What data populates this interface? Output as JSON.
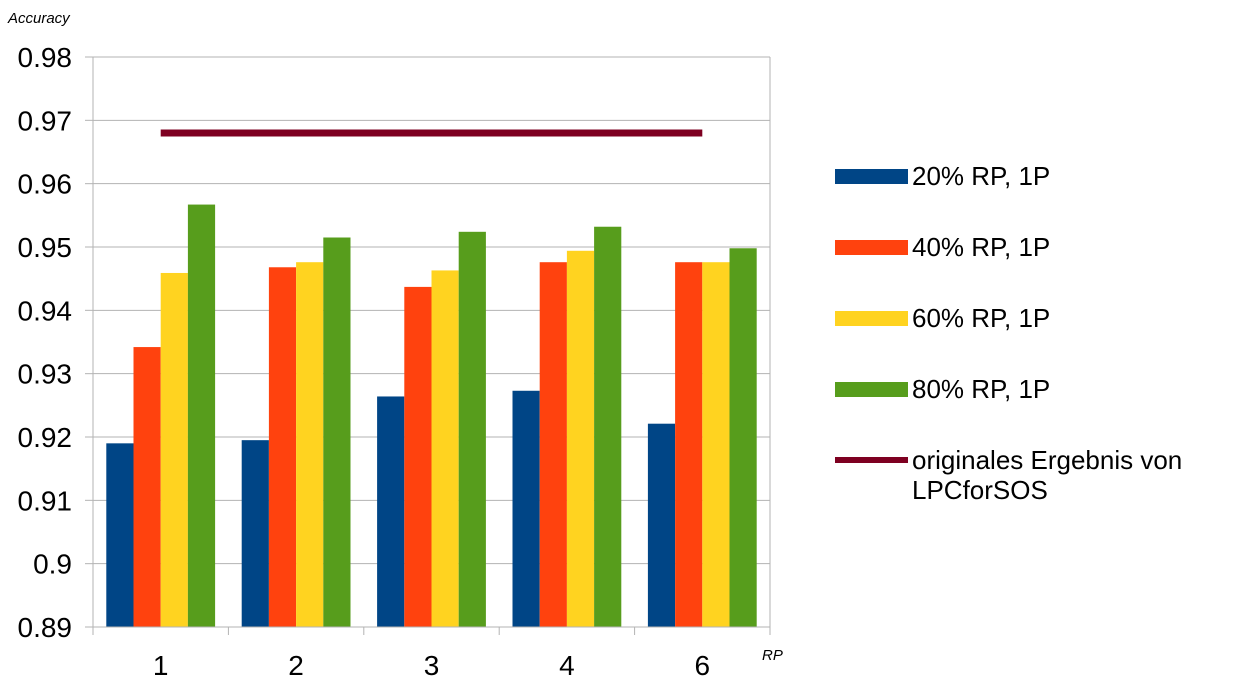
{
  "chart_data": {
    "type": "bar",
    "title": "",
    "ylabel": "Accuracy",
    "xlabel": "RP",
    "categories": [
      "1",
      "2",
      "3",
      "4",
      "6"
    ],
    "ylim": [
      0.89,
      0.98
    ],
    "yticks": [
      "0.98",
      "0.97",
      "0.96",
      "0.95",
      "0.94",
      "0.93",
      "0.92",
      "0.91",
      "0.9",
      "0.89"
    ],
    "grid": true,
    "legend_position": "right",
    "series": [
      {
        "name": "20% RP, 1P",
        "color": "#004586",
        "values": [
          0.919,
          0.9195,
          0.9264,
          0.9273,
          0.9221
        ]
      },
      {
        "name": "40% RP, 1P",
        "color": "#ff420e",
        "values": [
          0.9342,
          0.9468,
          0.9437,
          0.9476,
          0.9476
        ]
      },
      {
        "name": "60% RP, 1P",
        "color": "#ffd320",
        "values": [
          0.9459,
          0.9476,
          0.9463,
          0.9494,
          0.9476
        ]
      },
      {
        "name": "80% RP, 1P",
        "color": "#579d1c",
        "values": [
          0.9567,
          0.9515,
          0.9524,
          0.9532,
          0.9498
        ]
      }
    ],
    "reference_line": {
      "name": "originales Ergebnis von LPCforSOS",
      "name_lines": [
        "originales Ergebnis von",
        "LPCforSOS"
      ],
      "value": 0.968,
      "color": "#7e0021"
    }
  }
}
